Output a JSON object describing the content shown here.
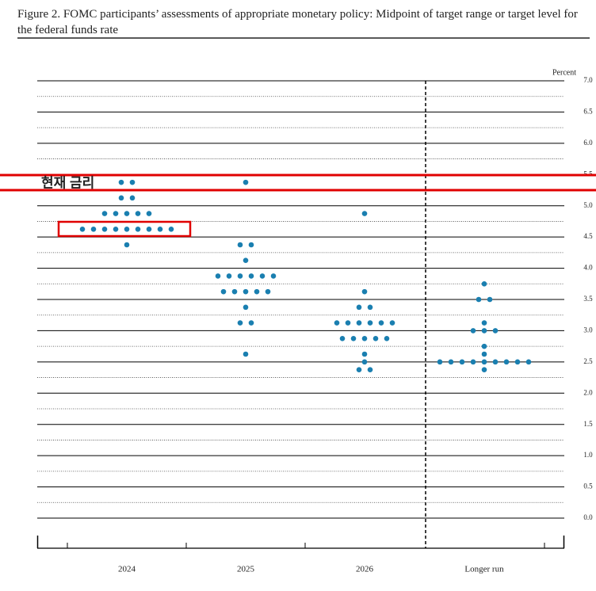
{
  "chart_data": {
    "type": "dot",
    "title": "Figure 2.  FOMC participants’ assessments of appropriate monetary policy: Midpoint of target range or target level for the federal funds rate",
    "y_label": "Percent",
    "categories": [
      "2024",
      "2025",
      "2026",
      "Longer run"
    ],
    "dots": [
      [
        5.375,
        5.375,
        5.125,
        5.125,
        4.875,
        4.875,
        4.875,
        4.875,
        4.875,
        4.625,
        4.625,
        4.625,
        4.625,
        4.625,
        4.625,
        4.625,
        4.625,
        4.625,
        4.375
      ],
      [
        5.375,
        4.375,
        4.375,
        4.125,
        3.875,
        3.875,
        3.875,
        3.875,
        3.875,
        3.875,
        3.625,
        3.625,
        3.625,
        3.625,
        3.625,
        3.375,
        3.125,
        3.125,
        2.625
      ],
      [
        4.875,
        3.625,
        3.375,
        3.375,
        3.125,
        3.125,
        3.125,
        3.125,
        3.125,
        3.125,
        2.875,
        2.875,
        2.875,
        2.875,
        2.875,
        2.625,
        2.5,
        2.375,
        2.375
      ],
      [
        3.75,
        3.5,
        3.5,
        3.125,
        3.0,
        3.0,
        3.0,
        2.75,
        2.625,
        2.5,
        2.5,
        2.5,
        2.5,
        2.5,
        2.5,
        2.5,
        2.5,
        2.5,
        2.375
      ]
    ],
    "color": "#1a7fb0",
    "ylim": [
      0,
      7
    ],
    "yticks": [
      {
        "value": 0,
        "label": "0.0"
      },
      0.5,
      {
        "value": 1,
        "label": "1.0"
      },
      1.5,
      {
        "value": 2,
        "label": "2.0"
      },
      2.5,
      {
        "value": 3,
        "label": "3.0"
      },
      3.5,
      {
        "value": 4,
        "label": "4.0"
      },
      4.5,
      {
        "value": 5,
        "label": "5.0"
      },
      5.5,
      {
        "value": 6,
        "label": "6.0"
      },
      6.5,
      {
        "value": 7,
        "label": "7.0"
      }
    ],
    "minor_yticks": [
      0.25,
      0.75,
      1.25,
      1.75,
      2.25,
      2.75,
      3.25,
      3.75,
      4.25,
      4.75,
      5.25,
      5.75,
      6.25,
      6.75
    ],
    "annotation": "현재 금리"
  }
}
